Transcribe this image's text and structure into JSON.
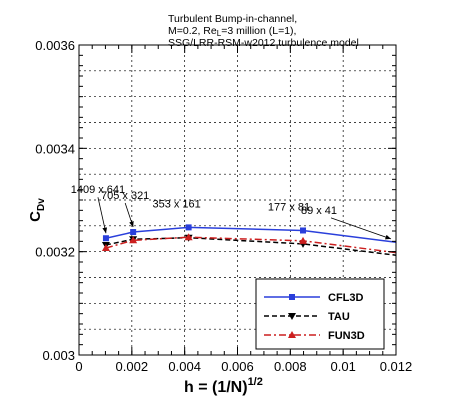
{
  "chart_data": {
    "type": "line",
    "title_lines": [
      "Turbulent Bump-in-channel,",
      "M=0.2, Re_L=3 million (L=1),",
      "SSG/LRR-RSM-w2012 turbulence model"
    ],
    "xlabel": "h = (1/N)^1/2",
    "ylabel": "C_Dv",
    "xlim": [
      0,
      0.012
    ],
    "ylim": [
      0.003,
      0.0036
    ],
    "xticks": [
      "0",
      "0.002",
      "0.004",
      "0.006",
      "0.008",
      "0.01",
      "0.012"
    ],
    "yticks": [
      "0.003",
      "0.0032",
      "0.0034",
      "0.0036"
    ],
    "grid": true,
    "legend_position": "bottom-right",
    "series": [
      {
        "name": "CFL3D",
        "color": "#2a3fdb",
        "line_style": "solid",
        "marker": "square",
        "x": [
          0.00102,
          0.00205,
          0.00415,
          0.00848,
          0.0125
        ],
        "y": [
          0.003226,
          0.003238,
          0.003247,
          0.003241,
          0.003215
        ]
      },
      {
        "name": "TAU",
        "color": "#000000",
        "line_style": "dashed",
        "marker": "triangle-down",
        "x": [
          0.00102,
          0.00205,
          0.00415,
          0.00848,
          0.0125
        ],
        "y": [
          0.003213,
          0.003224,
          0.003227,
          0.003215,
          0.00319
        ]
      },
      {
        "name": "FUN3D",
        "color": "#cc1f1f",
        "line_style": "dash-dot",
        "marker": "triangle-up",
        "x": [
          0.00102,
          0.00205,
          0.00415,
          0.00848,
          0.0125
        ],
        "y": [
          0.003207,
          0.003222,
          0.003228,
          0.003221,
          0.003195
        ]
      }
    ],
    "annotations": [
      {
        "text": "1409 x 641",
        "x": 0.00102,
        "y": 0.003226
      },
      {
        "text": "705 x 321",
        "x": 0.00205,
        "y": 0.003238
      },
      {
        "text": "353 x 161",
        "x": 0.00415,
        "y": 0.003247
      },
      {
        "text": "177 x 81",
        "x": 0.00848,
        "y": 0.003241
      },
      {
        "text": "89 x 41",
        "x": 0.0125,
        "y": 0.003215
      }
    ]
  }
}
